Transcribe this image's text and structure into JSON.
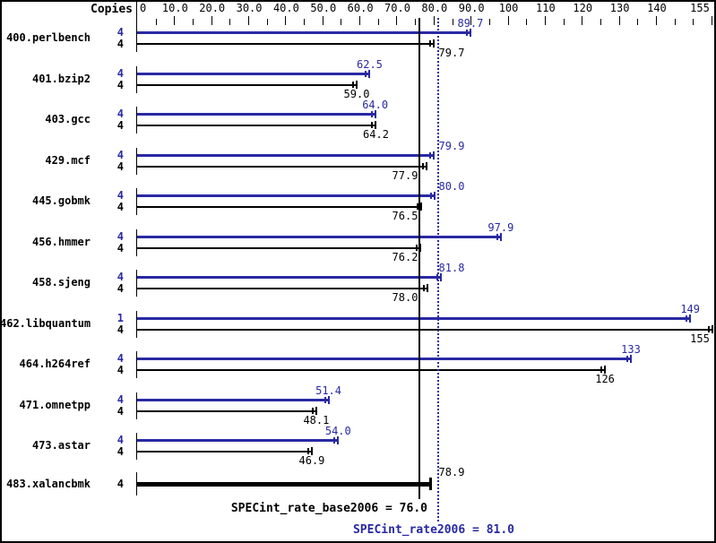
{
  "colors": {
    "peak": "#2929a3",
    "base": "#000000",
    "background": "#ffffff"
  },
  "chart_data": {
    "type": "bar",
    "orientation": "horizontal",
    "copies_header": "Copies",
    "x_axis": {
      "min": 0,
      "max": 155,
      "zero_label": "0",
      "major_ticks": [
        {
          "value": 10,
          "label": "10.0"
        },
        {
          "value": 20,
          "label": "20.0"
        },
        {
          "value": 30,
          "label": "30.0"
        },
        {
          "value": 40,
          "label": "40.0"
        },
        {
          "value": 50,
          "label": "50.0"
        },
        {
          "value": 60,
          "label": "60.0"
        },
        {
          "value": 70,
          "label": "70.0"
        },
        {
          "value": 80,
          "label": "80.0"
        },
        {
          "value": 90,
          "label": "90.0"
        },
        {
          "value": 100,
          "label": "100"
        },
        {
          "value": 110,
          "label": "110"
        },
        {
          "value": 120,
          "label": "120"
        },
        {
          "value": 130,
          "label": "130"
        },
        {
          "value": 140,
          "label": "140"
        },
        {
          "value": 155,
          "label": "155"
        }
      ],
      "minor_ticks": [
        5,
        15,
        25,
        35,
        45,
        55,
        65,
        75,
        85,
        95,
        105,
        115,
        125,
        135,
        145,
        150
      ]
    },
    "benchmarks": [
      {
        "name": "400.perlbench",
        "peak_copies": "4",
        "peak": 89.7,
        "peak_label": "89.7",
        "base_copies": "4",
        "base": 79.7,
        "base_label": "79.7"
      },
      {
        "name": "401.bzip2",
        "peak_copies": "4",
        "peak": 62.5,
        "peak_label": "62.5",
        "base_copies": "4",
        "base": 59.0,
        "base_label": "59.0"
      },
      {
        "name": "403.gcc",
        "peak_copies": "4",
        "peak": 64.0,
        "peak_label": "64.0",
        "base_copies": "4",
        "base": 64.2,
        "base_label": "64.2"
      },
      {
        "name": "429.mcf",
        "peak_copies": "4",
        "peak": 79.9,
        "peak_label": "79.9",
        "base_copies": "4",
        "base": 77.9,
        "base_label": "77.9"
      },
      {
        "name": "445.gobmk",
        "peak_copies": "4",
        "peak": 80.0,
        "peak_label": "80.0",
        "base_copies": "4",
        "base": 76.5,
        "base_label": "76.5"
      },
      {
        "name": "456.hmmer",
        "peak_copies": "4",
        "peak": 97.9,
        "peak_label": "97.9",
        "base_copies": "4",
        "base": 76.2,
        "base_label": "76.2"
      },
      {
        "name": "458.sjeng",
        "peak_copies": "4",
        "peak": 81.8,
        "peak_label": "81.8",
        "base_copies": "4",
        "base": 78.0,
        "base_label": "78.0"
      },
      {
        "name": "462.libquantum",
        "peak_copies": "1",
        "peak": 149,
        "peak_label": "149",
        "base_copies": "4",
        "base": 155,
        "base_label": "155"
      },
      {
        "name": "464.h264ref",
        "peak_copies": "4",
        "peak": 133,
        "peak_label": "133",
        "base_copies": "4",
        "base": 126,
        "base_label": "126"
      },
      {
        "name": "471.omnetpp",
        "peak_copies": "4",
        "peak": 51.4,
        "peak_label": "51.4",
        "base_copies": "4",
        "base": 48.1,
        "base_label": "48.1"
      },
      {
        "name": "473.astar",
        "peak_copies": "4",
        "peak": 54.0,
        "peak_label": "54.0",
        "base_copies": "4",
        "base": 46.9,
        "base_label": "46.9"
      },
      {
        "name": "483.xalancbmk",
        "single": true,
        "base_copies": "4",
        "base": 78.9,
        "base_label": "78.9",
        "label_above": true
      }
    ],
    "reference_lines": [
      {
        "value": 76.0,
        "style": "solid",
        "series": "base",
        "label": "SPECint_rate_base2006 = 76.0"
      },
      {
        "value": 81.0,
        "style": "dotted",
        "series": "peak",
        "label": "SPECint_rate2006 = 81.0"
      }
    ]
  }
}
